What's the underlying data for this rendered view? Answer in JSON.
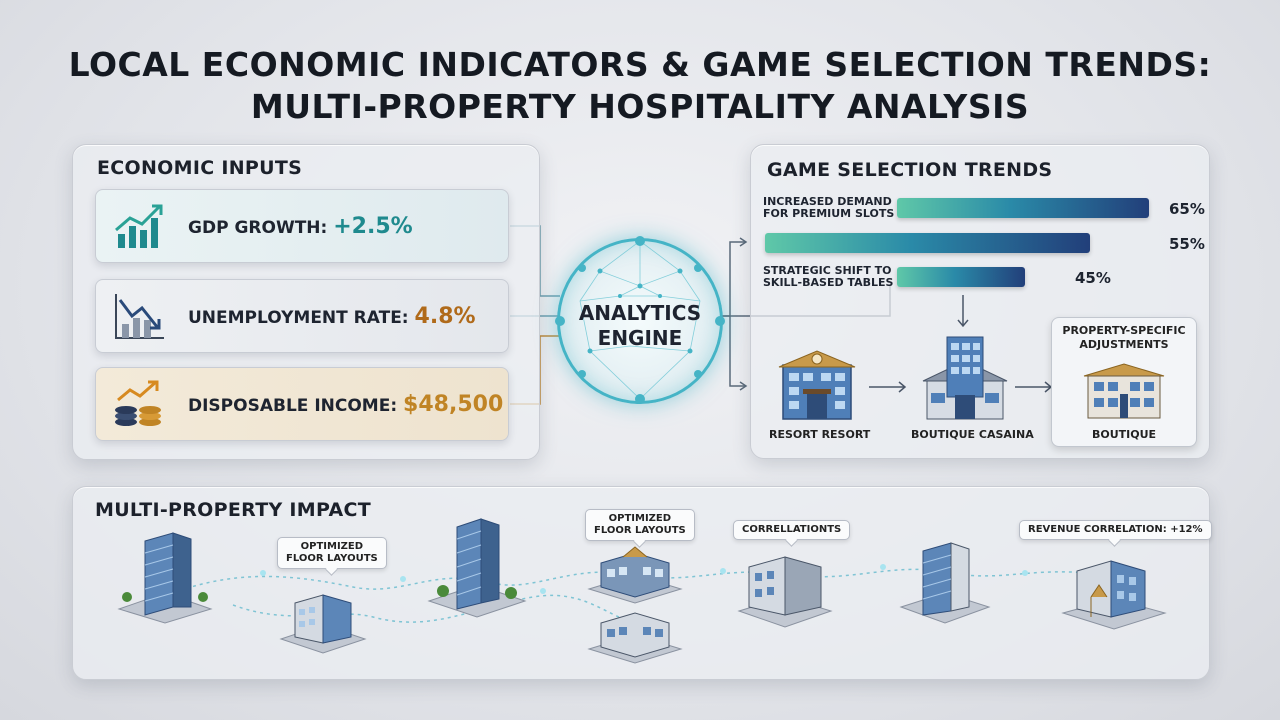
{
  "title": {
    "line1": "LOCAL ECONOMIC INDICATORS & GAME SELECTION TRENDS:",
    "line2": "MULTI-PROPERTY HOSPITALITY ANALYSIS"
  },
  "inputs": {
    "heading": "ECONOMIC INPUTS",
    "items": [
      {
        "label": "GDP GROWTH: ",
        "value": "+2.5%",
        "value_color": "#1f8a8e",
        "icon": "trending-up-chart-icon"
      },
      {
        "label": "UNEMPLOYMENT RATE: ",
        "value": "4.8%",
        "value_color": "#b06a1a",
        "icon": "trending-down-chart-icon"
      },
      {
        "label": "DISPOSABLE INCOME: ",
        "value": "$48,500",
        "value_color": "#c08425",
        "icon": "coins-growth-icon"
      }
    ]
  },
  "engine": {
    "line1": "ANALYTICS",
    "line2": "ENGINE"
  },
  "trends": {
    "heading": "GAME SELECTION TRENDS",
    "bars": [
      {
        "label1": "INCREASED DEMAND",
        "label2": "FOR PREMIUM SLOTS",
        "value": 65,
        "display": "65%"
      },
      {
        "label1": "",
        "label2": "",
        "value": 55,
        "display": "55%"
      },
      {
        "label1": "STRATEGIC SHIFT TO",
        "label2": "SKILL-BASED TABLES",
        "value": 45,
        "display": "45%"
      }
    ],
    "properties": [
      "RESORT RESORT",
      "BOUTIQUE CASAINA",
      "BOUTIQUE"
    ],
    "adjust_line1": "PROPERTY-SPECIFIC",
    "adjust_line2": "ADJUSTMENTS"
  },
  "impact": {
    "heading": "MULTI-PROPERTY IMPACT",
    "tags": [
      {
        "line1": "OPTIMIZED",
        "line2": "FLOOR LAYOUTS"
      },
      {
        "line1": "OPTIMIZED",
        "line2": "FLOOR LAYOUTS"
      },
      {
        "line1": "CORRELLATIONTS",
        "line2": ""
      },
      {
        "line1": "REVENUE CORRELATION: +12%",
        "line2": ""
      }
    ]
  },
  "colors": {
    "accent_teal": "#45b4c6",
    "bar_dark": "#223f7a",
    "orange": "#c08425"
  }
}
